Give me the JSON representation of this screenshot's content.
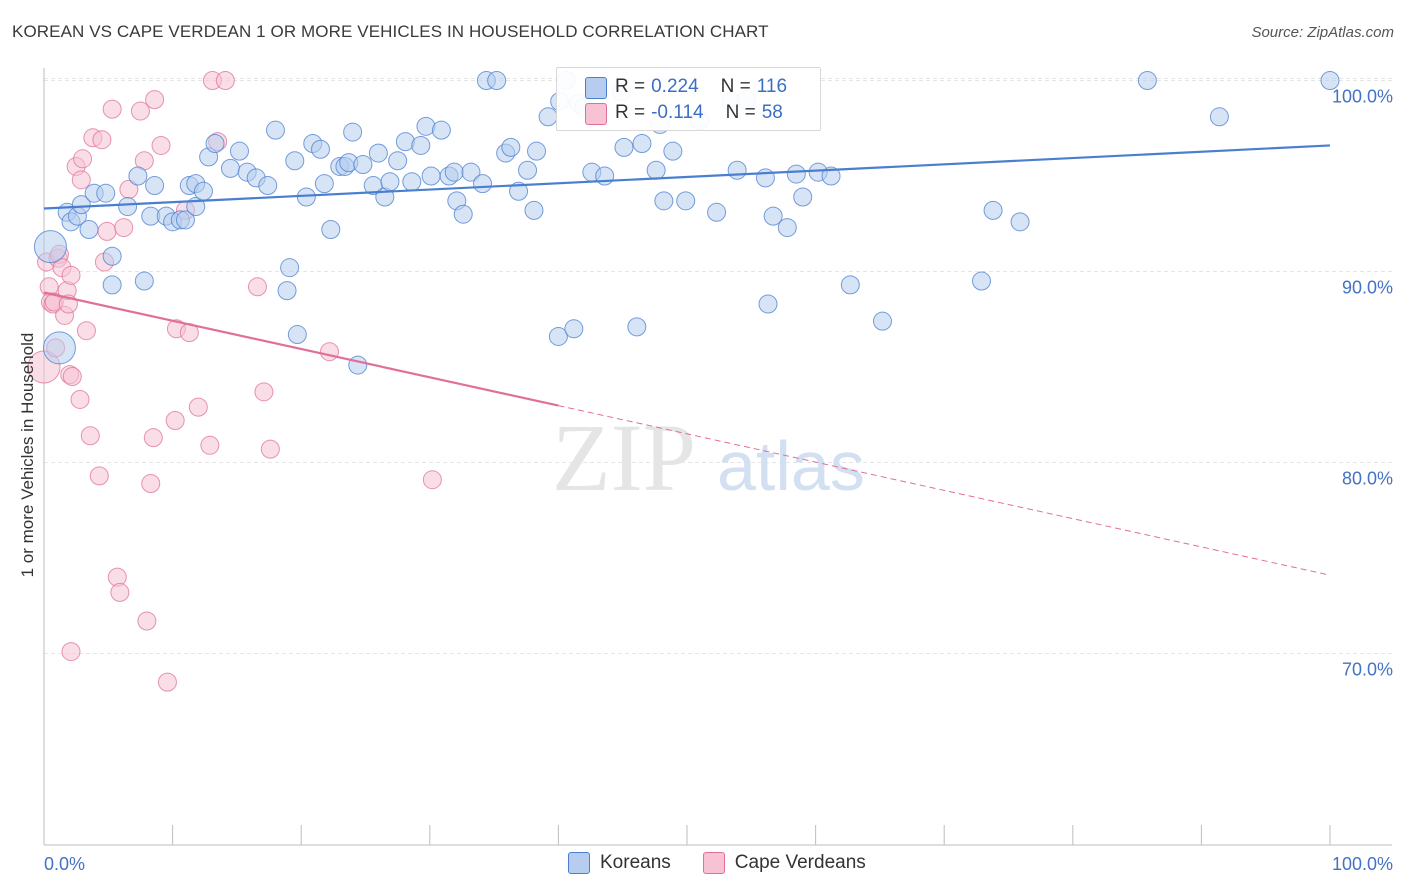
{
  "title": "KOREAN VS CAPE VERDEAN 1 OR MORE VEHICLES IN HOUSEHOLD CORRELATION CHART",
  "source": "Source: ZipAtlas.com",
  "watermark": {
    "zip": "ZIP",
    "atlas": "atlas"
  },
  "colors": {
    "korean": "#4a7fd0",
    "korean_fill": "#b7cdef",
    "cape": "#e07098",
    "cape_fill": "#f6c2d4",
    "axis_text": "#4472c4",
    "grid": "#e6e6e6"
  },
  "legend_top": {
    "rows": [
      {
        "r_label": "R =",
        "r_value": "0.224",
        "n_label": "N =",
        "n_value": "116"
      },
      {
        "r_label": "R =",
        "r_value": "-0.114",
        "n_label": "N =",
        "n_value": "58"
      }
    ]
  },
  "legend_bottom": [
    "Koreans",
    "Cape Verdeans"
  ],
  "chart_data": {
    "type": "scatter",
    "title": "KOREAN VS CAPE VERDEAN 1 OR MORE VEHICLES IN HOUSEHOLD CORRELATION CHART",
    "xlabel": "",
    "ylabel": "1 or more Vehicles in Household",
    "xlim": [
      0,
      100
    ],
    "ylim": [
      60.5,
      101
    ],
    "x_tick_labels": [
      "0.0%",
      "100.0%"
    ],
    "y_ticks": [
      70,
      80,
      90,
      100
    ],
    "y_tick_labels": [
      "70.0%",
      "80.0%",
      "90.0%",
      "100.0%"
    ],
    "grid": true,
    "series": [
      {
        "name": "Koreans",
        "trend": {
          "x": [
            0,
            100
          ],
          "y": [
            93.3,
            96.6
          ]
        },
        "points": [
          [
            0.5,
            91.3,
            "L"
          ],
          [
            1.2,
            86.0,
            "L"
          ],
          [
            1.8,
            93.1
          ],
          [
            2.1,
            92.6
          ],
          [
            2.6,
            92.9
          ],
          [
            2.9,
            93.5
          ],
          [
            3.5,
            92.2
          ],
          [
            3.9,
            94.1
          ],
          [
            4.8,
            94.1
          ],
          [
            5.3,
            90.8
          ],
          [
            5.3,
            89.3
          ],
          [
            6.5,
            93.4
          ],
          [
            7.3,
            95.0
          ],
          [
            7.8,
            89.5
          ],
          [
            8.3,
            92.9
          ],
          [
            8.6,
            94.5
          ],
          [
            9.5,
            92.9
          ],
          [
            10.0,
            92.6
          ],
          [
            10.6,
            92.7
          ],
          [
            11.0,
            92.7
          ],
          [
            11.3,
            94.5
          ],
          [
            11.8,
            94.6
          ],
          [
            11.8,
            93.4
          ],
          [
            12.4,
            94.2
          ],
          [
            12.8,
            96.0
          ],
          [
            13.3,
            96.7
          ],
          [
            14.5,
            95.4
          ],
          [
            15.2,
            96.3
          ],
          [
            15.8,
            95.2
          ],
          [
            16.5,
            94.9
          ],
          [
            17.4,
            94.5
          ],
          [
            18.0,
            97.4
          ],
          [
            18.9,
            89.0
          ],
          [
            19.1,
            90.2
          ],
          [
            19.5,
            95.8
          ],
          [
            19.7,
            86.7
          ],
          [
            20.4,
            93.9
          ],
          [
            20.9,
            96.7
          ],
          [
            21.5,
            96.4
          ],
          [
            21.8,
            94.6
          ],
          [
            22.3,
            92.2
          ],
          [
            23.0,
            95.5
          ],
          [
            23.4,
            95.5
          ],
          [
            23.7,
            95.7
          ],
          [
            24.0,
            97.3
          ],
          [
            24.4,
            85.1
          ],
          [
            24.8,
            95.6
          ],
          [
            25.6,
            94.5
          ],
          [
            26.0,
            96.2
          ],
          [
            26.5,
            93.9
          ],
          [
            26.9,
            94.7
          ],
          [
            27.5,
            95.8
          ],
          [
            28.1,
            96.8
          ],
          [
            28.6,
            94.7
          ],
          [
            29.3,
            96.6
          ],
          [
            29.7,
            97.6
          ],
          [
            30.1,
            95.0
          ],
          [
            30.9,
            97.4
          ],
          [
            31.5,
            95.0
          ],
          [
            31.9,
            95.2
          ],
          [
            32.1,
            93.7
          ],
          [
            32.6,
            93.0
          ],
          [
            33.2,
            95.2
          ],
          [
            34.1,
            94.6
          ],
          [
            34.4,
            100.0
          ],
          [
            35.2,
            100.0
          ],
          [
            35.9,
            96.2
          ],
          [
            36.3,
            96.5
          ],
          [
            36.9,
            94.2
          ],
          [
            37.6,
            95.3
          ],
          [
            38.1,
            93.2
          ],
          [
            38.3,
            96.3
          ],
          [
            39.2,
            98.1
          ],
          [
            40.0,
            86.6
          ],
          [
            40.1,
            98.9
          ],
          [
            40.6,
            100.0
          ],
          [
            41.2,
            87.0
          ],
          [
            41.6,
            98.8
          ],
          [
            42.0,
            98.6
          ],
          [
            42.6,
            95.2
          ],
          [
            43.6,
            95.0
          ],
          [
            44.9,
            99.4
          ],
          [
            45.1,
            96.5
          ],
          [
            46.1,
            87.1
          ],
          [
            46.5,
            96.7
          ],
          [
            47.6,
            95.3
          ],
          [
            47.9,
            97.7
          ],
          [
            48.2,
            93.7
          ],
          [
            48.9,
            96.3
          ],
          [
            49.9,
            93.7
          ],
          [
            51.0,
            97.9
          ],
          [
            52.3,
            93.1
          ],
          [
            53.4,
            98.9
          ],
          [
            53.9,
            95.3
          ],
          [
            54.6,
            99.0
          ],
          [
            56.1,
            94.9
          ],
          [
            56.3,
            88.3
          ],
          [
            56.7,
            92.9
          ],
          [
            57.8,
            92.3
          ],
          [
            58.5,
            95.1
          ],
          [
            59.0,
            93.9
          ],
          [
            60.2,
            95.2
          ],
          [
            61.2,
            95.0
          ],
          [
            62.7,
            89.3
          ],
          [
            65.2,
            87.4
          ],
          [
            72.9,
            89.5
          ],
          [
            73.8,
            93.2
          ],
          [
            75.9,
            92.6
          ],
          [
            85.8,
            100.0
          ],
          [
            91.4,
            98.1
          ],
          [
            100.0,
            100.0
          ]
        ]
      },
      {
        "name": "Cape Verdeans",
        "trend": {
          "x": [
            0,
            100
          ],
          "y": [
            88.9,
            74.1
          ]
        },
        "trend_solid_to_x": 40,
        "points": [
          [
            0.0,
            85.0,
            "L"
          ],
          [
            0.2,
            90.5
          ],
          [
            0.4,
            89.2
          ],
          [
            0.5,
            88.4
          ],
          [
            0.7,
            88.3
          ],
          [
            0.8,
            88.4
          ],
          [
            0.9,
            86.0
          ],
          [
            1.1,
            90.7
          ],
          [
            1.2,
            90.9
          ],
          [
            1.4,
            90.2
          ],
          [
            1.6,
            87.7
          ],
          [
            1.8,
            89.0
          ],
          [
            1.9,
            88.3
          ],
          [
            2.0,
            84.6
          ],
          [
            2.1,
            89.8
          ],
          [
            2.2,
            84.5
          ],
          [
            2.5,
            95.5
          ],
          [
            2.8,
            83.3
          ],
          [
            2.9,
            94.8
          ],
          [
            3.0,
            95.9
          ],
          [
            3.3,
            86.9
          ],
          [
            3.6,
            81.4
          ],
          [
            3.8,
            97.0
          ],
          [
            4.3,
            79.3
          ],
          [
            4.5,
            96.9
          ],
          [
            4.7,
            90.5
          ],
          [
            4.9,
            92.1
          ],
          [
            5.3,
            98.5
          ],
          [
            5.7,
            74.0
          ],
          [
            5.9,
            73.2
          ],
          [
            6.2,
            92.3
          ],
          [
            6.6,
            94.3
          ],
          [
            7.5,
            98.4
          ],
          [
            7.8,
            95.8
          ],
          [
            8.0,
            71.7
          ],
          [
            8.3,
            78.9
          ],
          [
            8.5,
            81.3
          ],
          [
            8.6,
            99.0
          ],
          [
            9.1,
            96.6
          ],
          [
            9.6,
            68.5
          ],
          [
            10.2,
            82.2
          ],
          [
            10.3,
            87.0
          ],
          [
            11.0,
            93.2
          ],
          [
            11.3,
            86.8
          ],
          [
            12.0,
            82.9
          ],
          [
            12.9,
            80.9
          ],
          [
            13.1,
            100.0
          ],
          [
            13.5,
            96.8
          ],
          [
            14.1,
            100.0
          ],
          [
            16.6,
            89.2
          ],
          [
            17.1,
            83.7
          ],
          [
            17.6,
            80.7
          ],
          [
            22.2,
            85.8
          ],
          [
            30.2,
            79.1
          ],
          [
            2.1,
            70.1
          ]
        ]
      }
    ]
  }
}
